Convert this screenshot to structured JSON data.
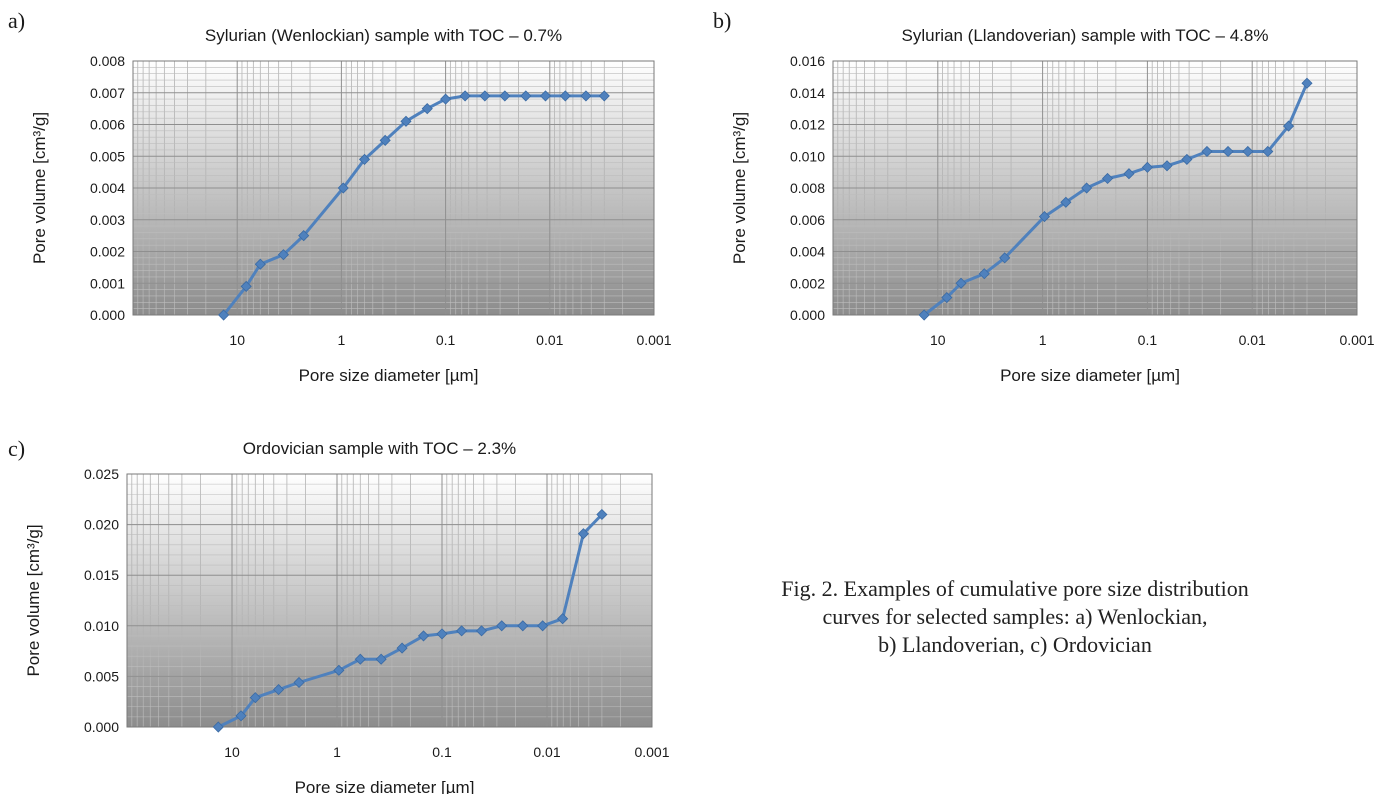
{
  "caption": {
    "line1": "Fig. 2. Examples of cumulative pore size distribution",
    "line2": "curves for selected samples: a) Wenlockian,",
    "line3": "b) Llandoverian, c) Ordovician"
  },
  "colors": {
    "series": "#4F81BD",
    "plot_gradient_top": "#FFFFFF",
    "plot_gradient_bottom": "#8C8C8C",
    "grid": "#9a9a9a"
  },
  "chart_data": [
    {
      "type": "line",
      "panel_label": "a)",
      "title": "Sylurian (Wenlockian) sample with TOC – 0.7%",
      "xlabel": "Pore size diameter [µm]",
      "ylabel": "Pore volume [cm³/g]",
      "x_scale": "log",
      "x_reversed": true,
      "xlim": [
        100,
        0.001
      ],
      "xticks": [
        10,
        1,
        0.1,
        0.01,
        0.001
      ],
      "xtick_labels": [
        "10",
        "1",
        "0.1",
        "0.01",
        "0.001"
      ],
      "ylim": [
        0,
        0.008
      ],
      "yticks": [
        0,
        0.001,
        0.002,
        0.003,
        0.004,
        0.005,
        0.006,
        0.007,
        0.008
      ],
      "ytick_labels": [
        "0.000",
        "0.001",
        "0.002",
        "0.003",
        "0.004",
        "0.005",
        "0.006",
        "0.007",
        "0.008"
      ],
      "grid": true,
      "series": [
        {
          "x": [
            13.5,
            8.2,
            6.0,
            3.6,
            2.3,
            0.96,
            0.6,
            0.38,
            0.24,
            0.15,
            0.1,
            0.065,
            0.042,
            0.027,
            0.017,
            0.011,
            0.0071,
            0.0045,
            0.003
          ],
          "y": [
            0.0,
            0.0009,
            0.0016,
            0.0019,
            0.0025,
            0.004,
            0.0049,
            0.0055,
            0.0061,
            0.0065,
            0.0068,
            0.0069,
            0.0069,
            0.0069,
            0.0069,
            0.0069,
            0.0069,
            0.0069,
            0.0069
          ]
        }
      ]
    },
    {
      "type": "line",
      "panel_label": "b)",
      "title": "Sylurian (Llandoverian) sample with TOC – 4.8%",
      "xlabel": "Pore size diameter [µm]",
      "ylabel": "Pore volume [cm³/g]",
      "x_scale": "log",
      "x_reversed": true,
      "xlim": [
        100,
        0.001
      ],
      "xticks": [
        10,
        1,
        0.1,
        0.01,
        0.001
      ],
      "xtick_labels": [
        "10",
        "1",
        "0.1",
        "0.01",
        "0.001"
      ],
      "ylim": [
        0,
        0.016
      ],
      "yticks": [
        0,
        0.002,
        0.004,
        0.006,
        0.008,
        0.01,
        0.012,
        0.014,
        0.016
      ],
      "ytick_labels": [
        "0.000",
        "0.002",
        "0.004",
        "0.006",
        "0.008",
        "0.010",
        "0.012",
        "0.014",
        "0.016"
      ],
      "grid": true,
      "series": [
        {
          "x": [
            13.5,
            8.2,
            6.0,
            3.6,
            2.3,
            0.96,
            0.6,
            0.38,
            0.24,
            0.15,
            0.1,
            0.065,
            0.042,
            0.027,
            0.017,
            0.011,
            0.0071,
            0.0045,
            0.003
          ],
          "y": [
            0.0,
            0.0011,
            0.002,
            0.0026,
            0.0036,
            0.0062,
            0.0071,
            0.008,
            0.0086,
            0.0089,
            0.0093,
            0.0094,
            0.0098,
            0.0103,
            0.0103,
            0.0103,
            0.0103,
            0.0119,
            0.0146
          ]
        }
      ]
    },
    {
      "type": "line",
      "panel_label": "c)",
      "title": "Ordovician sample with TOC – 2.3%",
      "xlabel": "Pore size diameter [µm]",
      "ylabel": "Pore volume [cm³/g]",
      "x_scale": "log",
      "x_reversed": true,
      "xlim": [
        100,
        0.001
      ],
      "xticks": [
        10,
        1,
        0.1,
        0.01,
        0.001
      ],
      "xtick_labels": [
        "10",
        "1",
        "0.1",
        "0.01",
        "0.001"
      ],
      "ylim": [
        0,
        0.025
      ],
      "yticks": [
        0,
        0.005,
        0.01,
        0.015,
        0.02,
        0.025
      ],
      "ytick_labels": [
        "0.000",
        "0.005",
        "0.010",
        "0.015",
        "0.020",
        "0.025"
      ],
      "grid": true,
      "series": [
        {
          "x": [
            13.5,
            8.2,
            6.0,
            3.6,
            2.3,
            0.96,
            0.6,
            0.38,
            0.24,
            0.15,
            0.1,
            0.065,
            0.042,
            0.027,
            0.017,
            0.011,
            0.0071,
            0.0045,
            0.003
          ],
          "y": [
            0.0,
            0.0011,
            0.0029,
            0.0037,
            0.0044,
            0.0056,
            0.0067,
            0.0067,
            0.0078,
            0.009,
            0.0092,
            0.0095,
            0.0095,
            0.01,
            0.01,
            0.01,
            0.0107,
            0.0191,
            0.021
          ]
        }
      ]
    }
  ]
}
